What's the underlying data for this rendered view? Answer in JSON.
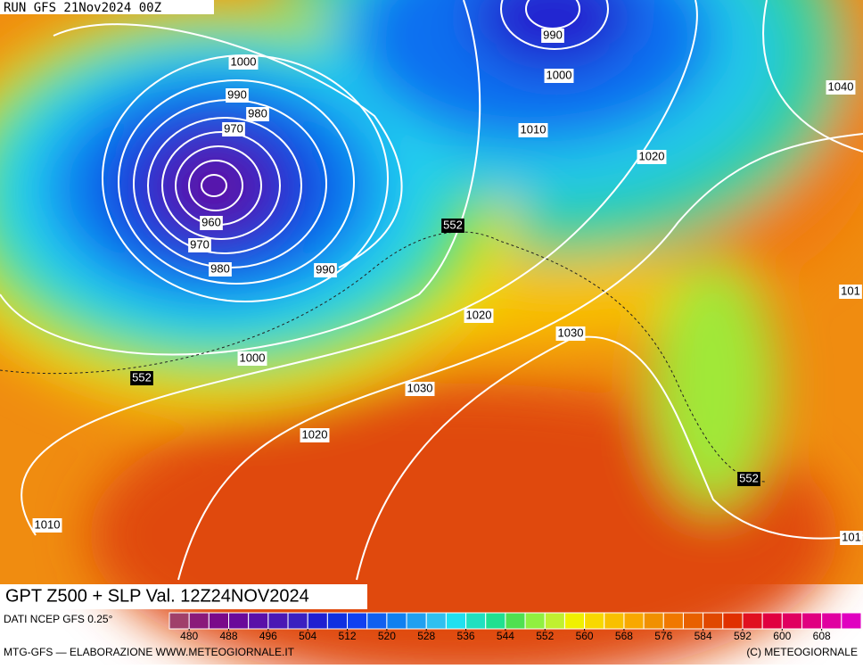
{
  "header": "RUN GFS 21Nov2024 00Z",
  "map": {
    "isobar_labels": [
      "990",
      "1000",
      "1000",
      "990",
      "980",
      "970",
      "960",
      "970",
      "980",
      "990",
      "1010",
      "1020",
      "1040",
      "1020",
      "1030",
      "1000",
      "1030",
      "1020",
      "1010",
      "101",
      "101"
    ],
    "z500_labels": [
      "552",
      "552",
      "552"
    ]
  },
  "title": "GPT Z500 + SLP Val. 12Z24NOV2024",
  "source": "DATI NCEP GFS 0.25°",
  "colorbar": {
    "min": 476,
    "max": 616,
    "colors": [
      "#a0406a",
      "#8a1a7a",
      "#7a0a8a",
      "#6a0a9a",
      "#5a10a8",
      "#4a18b4",
      "#3a20c0",
      "#2020d0",
      "#1030e0",
      "#1040f0",
      "#1060f0",
      "#1080f0",
      "#20a0f0",
      "#30c0f0",
      "#20e0f0",
      "#20e0c0",
      "#20e090",
      "#50e050",
      "#90f040",
      "#c0f030",
      "#f0f000",
      "#f8d800",
      "#f8c000",
      "#f8a800",
      "#f09000",
      "#f07800",
      "#e86000",
      "#e04800",
      "#e03000",
      "#e01020",
      "#e00040",
      "#e00060",
      "#e00080",
      "#e000a0",
      "#e000c0"
    ],
    "ticks": [
      480,
      488,
      496,
      504,
      512,
      520,
      528,
      536,
      544,
      552,
      560,
      568,
      576,
      584,
      592,
      600,
      608
    ]
  },
  "footer_left": "MTG-GFS — ELABORAZIONE WWW.METEOGIORNALE.IT",
  "footer_right": "(C) METEOGIORNALE"
}
